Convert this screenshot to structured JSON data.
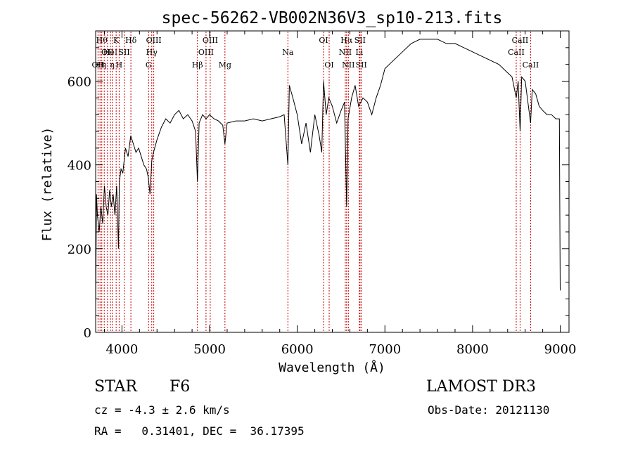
{
  "chart_data": {
    "type": "line",
    "title": "spec-56262-VB002N36V3_sp10-213.fits",
    "xlabel": "Wavelength (Å)",
    "ylabel": "Flux (relative)",
    "xlim": [
      3700,
      9100
    ],
    "ylim": [
      0,
      720
    ],
    "xticks": [
      4000,
      5000,
      6000,
      7000,
      8000,
      9000
    ],
    "yticks": [
      0,
      200,
      400,
      600
    ],
    "grid": false,
    "line_color": "#000000",
    "marker_color": "#cc0000",
    "series": [
      {
        "x": [
          3700,
          3710,
          3720,
          3740,
          3760,
          3780,
          3800,
          3820,
          3840,
          3860,
          3880,
          3900,
          3920,
          3940,
          3960,
          3970,
          3990,
          4010,
          4040,
          4070,
          4100,
          4130,
          4160,
          4190,
          4220,
          4250,
          4280,
          4300,
          4320,
          4340,
          4360,
          4400,
          4450,
          4500,
          4550,
          4600,
          4650,
          4700,
          4750,
          4800,
          4840,
          4861,
          4880,
          4920,
          4960,
          5000,
          5050,
          5100,
          5150,
          5175,
          5200,
          5300,
          5400,
          5500,
          5600,
          5700,
          5800,
          5850,
          5893,
          5910,
          5950,
          6000,
          6050,
          6100,
          6150,
          6200,
          6250,
          6280,
          6300,
          6330,
          6360,
          6400,
          6450,
          6500,
          6540,
          6563,
          6580,
          6620,
          6660,
          6700,
          6750,
          6800,
          6850,
          6900,
          6950,
          7000,
          7100,
          7200,
          7300,
          7400,
          7500,
          7600,
          7700,
          7800,
          7900,
          8000,
          8100,
          8200,
          8300,
          8400,
          8450,
          8498,
          8520,
          8542,
          8560,
          8600,
          8662,
          8680,
          8720,
          8760,
          8800,
          8850,
          8900,
          8950,
          8990,
          9000
        ],
        "values": [
          60,
          330,
          280,
          240,
          300,
          260,
          350,
          300,
          280,
          340,
          300,
          330,
          280,
          350,
          200,
          360,
          390,
          380,
          440,
          420,
          470,
          450,
          430,
          440,
          420,
          400,
          390,
          370,
          330,
          410,
          430,
          460,
          490,
          510,
          500,
          520,
          530,
          510,
          520,
          505,
          480,
          360,
          500,
          520,
          510,
          520,
          510,
          505,
          495,
          450,
          500,
          505,
          505,
          510,
          505,
          510,
          515,
          520,
          400,
          590,
          560,
          520,
          450,
          500,
          430,
          520,
          470,
          430,
          600,
          520,
          560,
          540,
          500,
          530,
          550,
          300,
          510,
          560,
          590,
          540,
          560,
          550,
          520,
          560,
          590,
          630,
          650,
          670,
          690,
          700,
          700,
          700,
          690,
          690,
          680,
          670,
          660,
          650,
          640,
          620,
          610,
          560,
          600,
          480,
          610,
          600,
          500,
          580,
          570,
          540,
          530,
          520,
          520,
          510,
          510,
          100
        ]
      }
    ],
    "line_markers": [
      {
        "x": 3727,
        "row": 2,
        "text": "OII"
      },
      {
        "x": 3750,
        "row": 2,
        "text": "H"
      },
      {
        "x": 3770,
        "row": 0,
        "text": "Hθ"
      },
      {
        "x": 3798,
        "row": 2,
        "text": "η"
      },
      {
        "x": 3835,
        "row": 1,
        "text": "OII"
      },
      {
        "x": 3869,
        "row": 1,
        "text": "HeI"
      },
      {
        "x": 3889,
        "row": 2,
        "text": "η"
      },
      {
        "x": 3934,
        "row": 0,
        "text": "K"
      },
      {
        "x": 3968,
        "row": 2,
        "text": "H"
      },
      {
        "x": 4026,
        "row": 1,
        "text": "SII"
      },
      {
        "x": 4102,
        "row": 0,
        "text": "Hδ"
      },
      {
        "x": 4304,
        "row": 2,
        "text": "G"
      },
      {
        "x": 4340,
        "row": 1,
        "text": "Hγ"
      },
      {
        "x": 4363,
        "row": 0,
        "text": "OIII"
      },
      {
        "x": 4861,
        "row": 2,
        "text": "Hβ"
      },
      {
        "x": 4959,
        "row": 1,
        "text": "OIII"
      },
      {
        "x": 5007,
        "row": 0,
        "text": "OIII"
      },
      {
        "x": 5175,
        "row": 2,
        "text": "Mg"
      },
      {
        "x": 5893,
        "row": 1,
        "text": "Na"
      },
      {
        "x": 6300,
        "row": 0,
        "text": "OI"
      },
      {
        "x": 6364,
        "row": 2,
        "text": "OI"
      },
      {
        "x": 6548,
        "row": 1,
        "text": "NII"
      },
      {
        "x": 6563,
        "row": 0,
        "text": "Hα"
      },
      {
        "x": 6583,
        "row": 2,
        "text": "NII"
      },
      {
        "x": 6708,
        "row": 1,
        "text": "Li"
      },
      {
        "x": 6716,
        "row": 0,
        "text": "SII"
      },
      {
        "x": 6731,
        "row": 2,
        "text": "SII"
      },
      {
        "x": 8498,
        "row": 1,
        "text": "CaII"
      },
      {
        "x": 8542,
        "row": 0,
        "text": "CaII"
      },
      {
        "x": 8662,
        "row": 2,
        "text": "CaII"
      }
    ]
  },
  "footer": {
    "class_label": "STAR",
    "subclass": "F6",
    "survey": "LAMOST DR3",
    "cz": "cz = -4.3 ± 2.6 km/s",
    "obs_date": "Obs-Date: 20121130",
    "coords": "RA =   0.31401, DEC =  36.17395"
  }
}
